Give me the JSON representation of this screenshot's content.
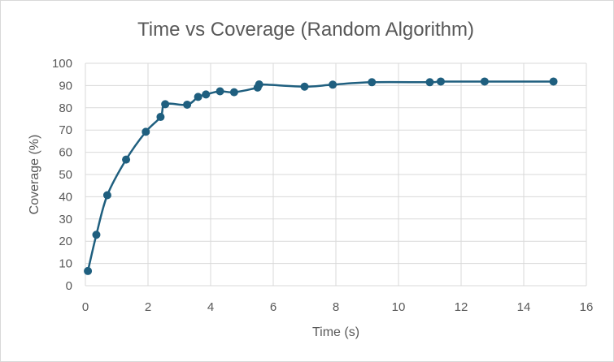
{
  "chart_data": {
    "type": "scatter",
    "title": "Time vs Coverage (Random Algorithm)",
    "xlabel": "Time (s)",
    "ylabel": "Coverage (%)",
    "xlim": [
      0,
      16
    ],
    "ylim": [
      0,
      100
    ],
    "x_ticks": [
      0,
      2,
      4,
      6,
      8,
      10,
      12,
      14,
      16
    ],
    "y_ticks": [
      0,
      10,
      20,
      30,
      40,
      50,
      60,
      70,
      80,
      90,
      100
    ],
    "grid": true,
    "smoothed_line": true,
    "series_color": "#1f5f7f",
    "points": [
      {
        "x": 0.08,
        "y": 6.6
      },
      {
        "x": 0.35,
        "y": 22.9
      },
      {
        "x": 0.7,
        "y": 40.7
      },
      {
        "x": 1.3,
        "y": 56.7
      },
      {
        "x": 1.93,
        "y": 69.2
      },
      {
        "x": 2.4,
        "y": 75.9
      },
      {
        "x": 2.55,
        "y": 81.6
      },
      {
        "x": 3.25,
        "y": 81.4
      },
      {
        "x": 3.6,
        "y": 84.9
      },
      {
        "x": 3.85,
        "y": 86.0
      },
      {
        "x": 4.3,
        "y": 87.4
      },
      {
        "x": 4.75,
        "y": 87.0
      },
      {
        "x": 5.5,
        "y": 89.1
      },
      {
        "x": 5.55,
        "y": 90.5
      },
      {
        "x": 7.0,
        "y": 89.5
      },
      {
        "x": 7.9,
        "y": 90.4
      },
      {
        "x": 9.15,
        "y": 91.5
      },
      {
        "x": 11.0,
        "y": 91.5
      },
      {
        "x": 11.35,
        "y": 91.8
      },
      {
        "x": 12.75,
        "y": 91.8
      },
      {
        "x": 14.95,
        "y": 91.8
      }
    ]
  }
}
